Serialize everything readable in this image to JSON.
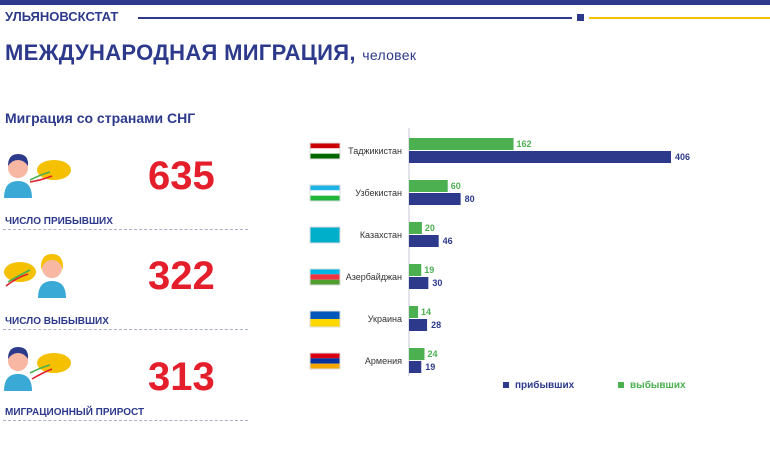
{
  "header": {
    "org": "УЛЬЯНОВСКСТАТ",
    "title": "МЕЖДУНАРОДНАЯ МИГРАЦИЯ,",
    "title_unit": "человек",
    "section": "Миграция со странами СНГ"
  },
  "stats": [
    {
      "value": "635",
      "label": "ЧИСЛО ПРИБЫВШИХ",
      "icon": "person-map-arrival-icon"
    },
    {
      "value": "322",
      "label": "ЧИСЛО ВЫБЫВШИХ",
      "icon": "person-map-departure-icon"
    },
    {
      "value": "313",
      "label": "МИГРАЦИОННЫЙ ПРИРОСТ",
      "icon": "person-map-growth-icon"
    }
  ],
  "colors": {
    "arrived": "#2d3a8c",
    "departed": "#4caf50",
    "accent_red": "#e41e2b",
    "accent_yellow": "#f5c000"
  },
  "chart_data": {
    "type": "bar",
    "orientation": "horizontal",
    "categories": [
      "Таджикистан",
      "Узбекистан",
      "Казахстан",
      "Азербайджан",
      "Украина",
      "Армения"
    ],
    "series": [
      {
        "name": "прибывших",
        "values": [
          406,
          80,
          46,
          30,
          28,
          19
        ]
      },
      {
        "name": "выбывших",
        "values": [
          162,
          60,
          20,
          19,
          14,
          24
        ]
      }
    ],
    "flag_icons": [
      "tajikistan-flag-icon",
      "uzbekistan-flag-icon",
      "kazakhstan-flag-icon",
      "azerbaijan-flag-icon",
      "ukraine-flag-icon",
      "armenia-flag-icon"
    ],
    "legend_position": "bottom"
  },
  "legend": {
    "arrived": "прибывших",
    "departed": "выбывших"
  }
}
